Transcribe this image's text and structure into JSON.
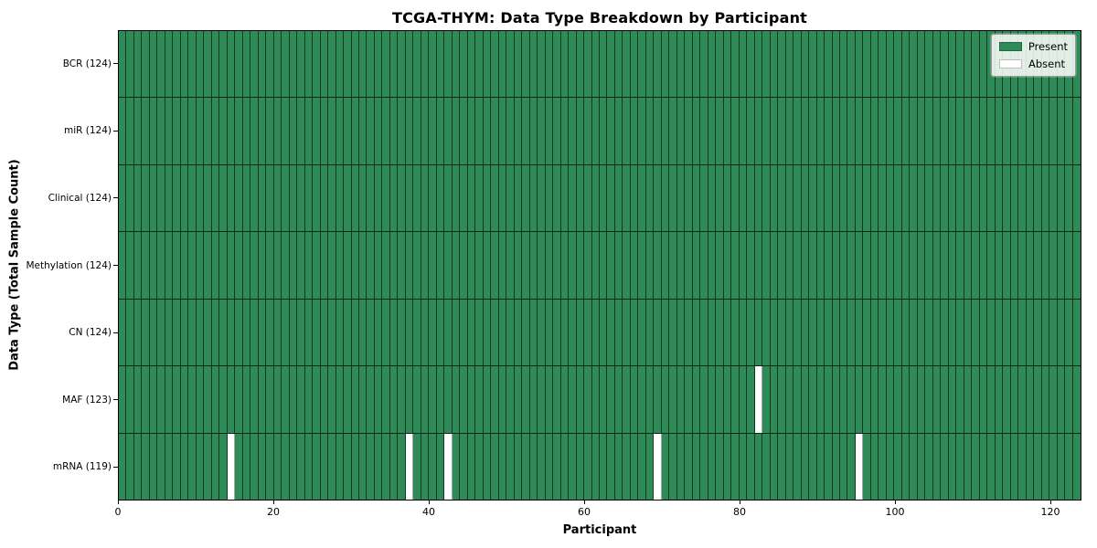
{
  "figure": {
    "background": "#ffffff"
  },
  "chart_data": {
    "type": "heatmap",
    "title": "TCGA-THYM: Data Type Breakdown by Participant",
    "xlabel": "Participant",
    "ylabel": "Data Type (Total Sample Count)",
    "n_participants": 124,
    "x_range": [
      0,
      124
    ],
    "x_ticks": [
      0,
      20,
      40,
      60,
      80,
      100,
      120
    ],
    "rows": [
      {
        "label": "BCR (124)",
        "present_count": 124,
        "absent_participants": []
      },
      {
        "label": "miR (124)",
        "present_count": 124,
        "absent_participants": []
      },
      {
        "label": "Clinical (124)",
        "present_count": 124,
        "absent_participants": []
      },
      {
        "label": "Methylation (124)",
        "present_count": 124,
        "absent_participants": []
      },
      {
        "label": "CN (124)",
        "present_count": 124,
        "absent_participants": []
      },
      {
        "label": "MAF (123)",
        "present_count": 123,
        "absent_participants": [
          82
        ]
      },
      {
        "label": "mRNA (119)",
        "present_count": 119,
        "absent_participants": [
          14,
          37,
          42,
          69,
          95
        ]
      }
    ],
    "legend": {
      "position": "upper right",
      "entries": [
        {
          "label": "Present",
          "color": "#2e8b57"
        },
        {
          "label": "Absent",
          "color": "#ffffff"
        }
      ]
    },
    "colors": {
      "present": "#2e8b57",
      "absent": "#ffffff",
      "cell_edge": "rgba(0,0,0,0.6)",
      "row_separator": "#0d2417",
      "plot_border": "#000000"
    },
    "grid": "cell-edges-visible"
  }
}
